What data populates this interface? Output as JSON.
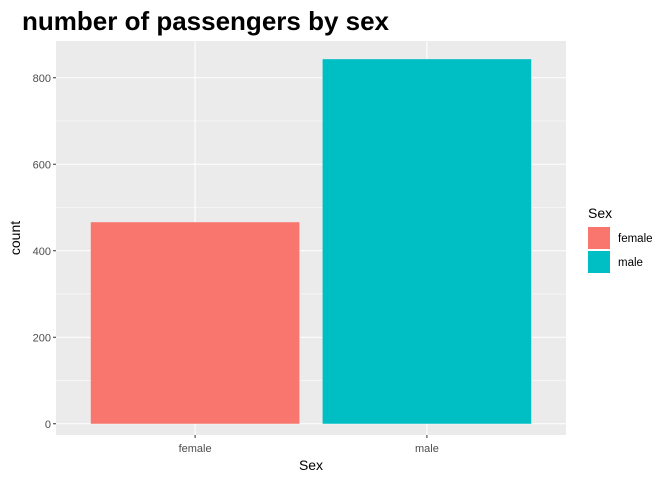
{
  "chart_data": {
    "type": "bar",
    "title": "number of passengers by sex",
    "xlabel": "Sex",
    "ylabel": "count",
    "categories": [
      "female",
      "male"
    ],
    "values": [
      466,
      843
    ],
    "ylim": [
      -26,
      885
    ],
    "yticks": [
      0,
      200,
      400,
      600,
      800
    ],
    "grid": true,
    "legend": {
      "title": "Sex",
      "placement": "right",
      "items": [
        "female",
        "male"
      ]
    },
    "colors": {
      "female": "#F8766D",
      "male": "#00BFC4",
      "panel": "#EBEBEB",
      "grid": "#FFFFFF"
    }
  }
}
